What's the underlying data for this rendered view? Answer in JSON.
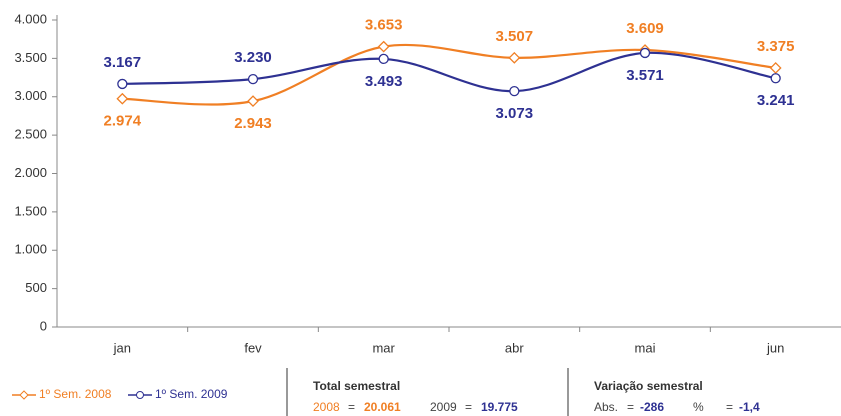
{
  "chart_data": {
    "type": "line",
    "categories": [
      "jan",
      "fev",
      "mar",
      "abr",
      "mai",
      "jun"
    ],
    "series": [
      {
        "name": "1º Sem. 2008",
        "color": "#f07f24",
        "marker": "diamond",
        "values": [
          2974,
          2943,
          3653,
          3507,
          3609,
          3375
        ],
        "value_labels": [
          "2.974",
          "2.943",
          "3.653",
          "3.507",
          "3.609",
          "3.375"
        ]
      },
      {
        "name": "1º Sem. 2009",
        "color": "#2e3192",
        "marker": "circle",
        "values": [
          3167,
          3230,
          3493,
          3073,
          3571,
          3241
        ],
        "value_labels": [
          "3.167",
          "3.230",
          "3.493",
          "3.073",
          "3.571",
          "3.241"
        ]
      }
    ],
    "ylim": [
      0,
      4000
    ],
    "yticks": [
      0,
      500,
      {
        "value": 1000,
        "label": "1.000"
      },
      {
        "value": 1500,
        "label": "1.500"
      },
      {
        "value": 2000,
        "label": "2.000"
      },
      {
        "value": 2500,
        "label": "2.500"
      },
      {
        "value": 3000,
        "label": "3.000"
      },
      {
        "value": 3500,
        "label": "3.500"
      },
      {
        "value": 4000,
        "label": "4.000"
      }
    ],
    "grid": false,
    "legend": "bottom-left",
    "summary": {
      "operator": "=",
      "total": {
        "title": "Total semestral",
        "items": [
          {
            "key": "2008",
            "value": "20.061"
          },
          {
            "key": "2009",
            "value": "19.775"
          }
        ]
      },
      "variation": {
        "title": "Variação semestral",
        "items": [
          {
            "key": "Abs.",
            "value": "-286"
          },
          {
            "key": "%",
            "value": "-1,4"
          }
        ]
      }
    }
  }
}
